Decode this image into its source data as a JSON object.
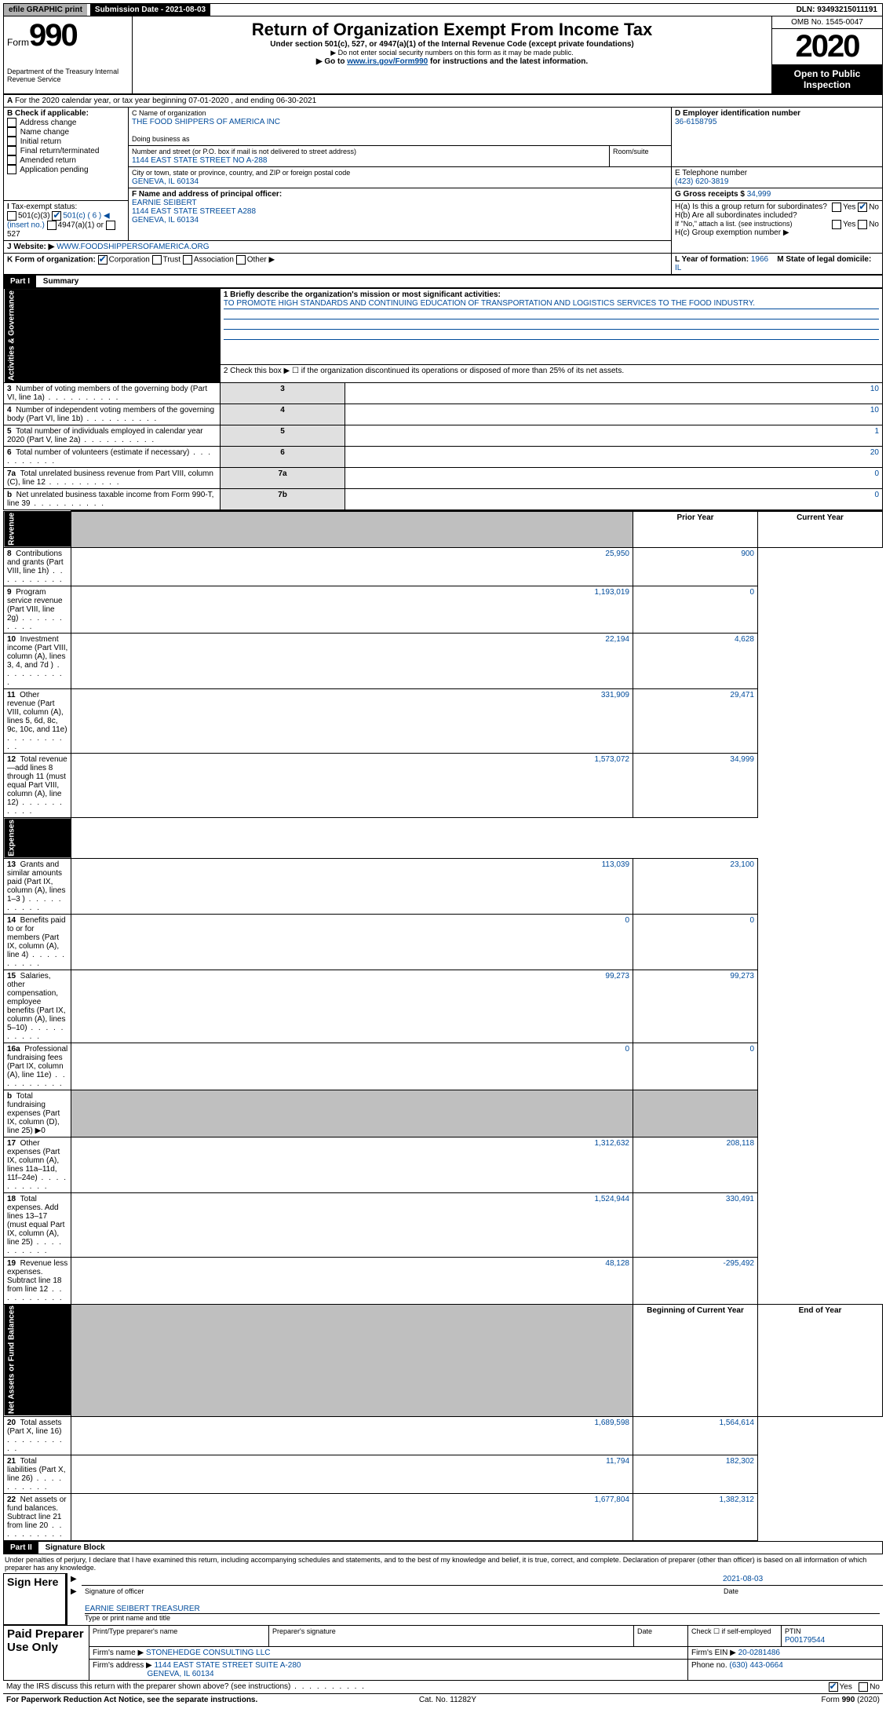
{
  "topbar": {
    "efile": "efile GRAPHIC print",
    "submission": "Submission Date - 2021-08-03",
    "dln": "DLN: 93493215011191"
  },
  "header": {
    "form_prefix": "Form",
    "form_num": "990",
    "dept": "Department of the Treasury Internal Revenue Service",
    "title": "Return of Organization Exempt From Income Tax",
    "subtitle1": "Under section 501(c), 527, or 4947(a)(1) of the Internal Revenue Code (except private foundations)",
    "subtitle2": "▶ Do not enter social security numbers on this form as it may be made public.",
    "subtitle3_pre": "▶ Go to ",
    "subtitle3_link": "www.irs.gov/Form990",
    "subtitle3_post": " for instructions and the latest information.",
    "omb": "OMB No. 1545-0047",
    "year": "2020",
    "open": "Open to Public Inspection"
  },
  "sectionA": {
    "tax_year": "For the 2020 calendar year, or tax year beginning 07-01-2020     , and ending 06-30-2021",
    "b_label": "B Check if applicable:",
    "b_opts": [
      "Address change",
      "Name change",
      "Initial return",
      "Final return/terminated",
      "Amended return",
      "Application pending"
    ],
    "c_label": "C Name of organization",
    "c_name": "THE FOOD SHIPPERS OF AMERICA INC",
    "dba": "Doing business as",
    "addr_label": "Number and street (or P.O. box if mail is not delivered to street address)",
    "addr": "1144 EAST STATE STREET NO A-288",
    "room": "Room/suite",
    "city_label": "City or town, state or province, country, and ZIP or foreign postal code",
    "city": "GENEVA, IL  60134",
    "d_label": "D Employer identification number",
    "d_val": "36-6158795",
    "e_label": "E Telephone number",
    "e_val": "(423) 620-3819",
    "g_label": "G Gross receipts $ ",
    "g_val": "34,999",
    "f_label": "F  Name and address of principal officer:",
    "f_name": "EARNIE SEIBERT",
    "f_addr1": "1144 EAST STATE STREEET A288",
    "f_addr2": "GENEVA, IL  60134",
    "h_a": "H(a)  Is this a group return for subordinates?",
    "h_b": "H(b)  Are all subordinates included?",
    "h_b_note": "If \"No,\" attach a list. (see instructions)",
    "h_c": "H(c)  Group exemption number ▶",
    "i_label": "Tax-exempt status:",
    "i_501c3": "501(c)(3)",
    "i_501c": "501(c) ( 6 ) ◀ (insert no.)",
    "i_4947": "4947(a)(1) or",
    "i_527": "527",
    "j_label": "Website: ▶",
    "j_val": "WWW.FOODSHIPPERSOFAMERICA.ORG",
    "k_label": "K Form of organization:",
    "k_opts": [
      "Corporation",
      "Trust",
      "Association",
      "Other ▶"
    ],
    "l_label": "L Year of formation: ",
    "l_val": "1966",
    "m_label": "M State of legal domicile: ",
    "m_val": "IL"
  },
  "part1": {
    "label": "Part I",
    "title": "Summary",
    "line1": "1  Briefly describe the organization's mission or most significant activities:",
    "mission": "TO PROMOTE HIGH STANDARDS AND CONTINUING EDUCATION OF TRANSPORTATION AND LOGISTICS SERVICES TO THE FOOD INDUSTRY.",
    "line2": "2   Check this box ▶ ☐  if the organization discontinued its operations or disposed of more than 25% of its net assets.",
    "rows_gov": [
      {
        "n": "3",
        "t": "Number of voting members of the governing body (Part VI, line 1a)",
        "lbl": "3",
        "v": "10"
      },
      {
        "n": "4",
        "t": "Number of independent voting members of the governing body (Part VI, line 1b)",
        "lbl": "4",
        "v": "10"
      },
      {
        "n": "5",
        "t": "Total number of individuals employed in calendar year 2020 (Part V, line 2a)",
        "lbl": "5",
        "v": "1"
      },
      {
        "n": "6",
        "t": "Total number of volunteers (estimate if necessary)",
        "lbl": "6",
        "v": "20"
      },
      {
        "n": "7a",
        "t": "Total unrelated business revenue from Part VIII, column (C), line 12",
        "lbl": "7a",
        "v": "0"
      },
      {
        "n": "b",
        "t": "Net unrelated business taxable income from Form 990-T, line 39",
        "lbl": "7b",
        "v": "0"
      }
    ],
    "col_prior": "Prior Year",
    "col_current": "Current Year",
    "rows_rev": [
      {
        "n": "8",
        "t": "Contributions and grants (Part VIII, line 1h)",
        "p": "25,950",
        "c": "900"
      },
      {
        "n": "9",
        "t": "Program service revenue (Part VIII, line 2g)",
        "p": "1,193,019",
        "c": "0"
      },
      {
        "n": "10",
        "t": "Investment income (Part VIII, column (A), lines 3, 4, and 7d )",
        "p": "22,194",
        "c": "4,628"
      },
      {
        "n": "11",
        "t": "Other revenue (Part VIII, column (A), lines 5, 6d, 8c, 9c, 10c, and 11e)",
        "p": "331,909",
        "c": "29,471"
      },
      {
        "n": "12",
        "t": "Total revenue—add lines 8 through 11 (must equal Part VIII, column (A), line 12)",
        "p": "1,573,072",
        "c": "34,999"
      }
    ],
    "rows_exp": [
      {
        "n": "13",
        "t": "Grants and similar amounts paid (Part IX, column (A), lines 1–3 )",
        "p": "113,039",
        "c": "23,100"
      },
      {
        "n": "14",
        "t": "Benefits paid to or for members (Part IX, column (A), line 4)",
        "p": "0",
        "c": "0"
      },
      {
        "n": "15",
        "t": "Salaries, other compensation, employee benefits (Part IX, column (A), lines 5–10)",
        "p": "99,273",
        "c": "99,273"
      },
      {
        "n": "16a",
        "t": "Professional fundraising fees (Part IX, column (A), line 11e)",
        "p": "0",
        "c": "0"
      },
      {
        "n": "b",
        "t": "Total fundraising expenses (Part IX, column (D), line 25) ▶0",
        "p": "",
        "c": ""
      },
      {
        "n": "17",
        "t": "Other expenses (Part IX, column (A), lines 11a–11d, 11f–24e)",
        "p": "1,312,632",
        "c": "208,118"
      },
      {
        "n": "18",
        "t": "Total expenses. Add lines 13–17 (must equal Part IX, column (A), line 25)",
        "p": "1,524,944",
        "c": "330,491"
      },
      {
        "n": "19",
        "t": "Revenue less expenses. Subtract line 18 from line 12",
        "p": "48,128",
        "c": "-295,492"
      }
    ],
    "col_beg": "Beginning of Current Year",
    "col_end": "End of Year",
    "rows_net": [
      {
        "n": "20",
        "t": "Total assets (Part X, line 16)",
        "p": "1,689,598",
        "c": "1,564,614"
      },
      {
        "n": "21",
        "t": "Total liabilities (Part X, line 26)",
        "p": "11,794",
        "c": "182,302"
      },
      {
        "n": "22",
        "t": "Net assets or fund balances. Subtract line 21 from line 20",
        "p": "1,677,804",
        "c": "1,382,312"
      }
    ],
    "vtabs": {
      "gov": "Activities & Governance",
      "rev": "Revenue",
      "exp": "Expenses",
      "net": "Net Assets or Fund Balances"
    }
  },
  "part2": {
    "label": "Part II",
    "title": "Signature Block",
    "perjury": "Under penalties of perjury, I declare that I have examined this return, including accompanying schedules and statements, and to the best of my knowledge and belief, it is true, correct, and complete. Declaration of preparer (other than officer) is based on all information of which preparer has any knowledge.",
    "sign_here": "Sign Here",
    "sig_officer": "Signature of officer",
    "sig_date_val": "2021-08-03",
    "sig_date": "Date",
    "sig_name": "EARNIE SEIBERT TREASURER",
    "sig_name_lbl": "Type or print name and title",
    "paid": "Paid Preparer Use Only",
    "prep_name_lbl": "Print/Type preparer's name",
    "prep_sig_lbl": "Preparer's signature",
    "prep_date_lbl": "Date",
    "self_emp": "Check ☐ if self-employed",
    "ptin_lbl": "PTIN",
    "ptin": "P00179544",
    "firm_name_lbl": "Firm's name     ▶",
    "firm_name": "STONEHEDGE CONSULTING LLC",
    "firm_ein_lbl": "Firm's EIN ▶ ",
    "firm_ein": "20-0281486",
    "firm_addr_lbl": "Firm's address ▶",
    "firm_addr": "1144 EAST STATE STREET SUITE A-280",
    "firm_city": "GENEVA, IL  60134",
    "phone_lbl": "Phone no. ",
    "phone": "(630) 443-0664",
    "discuss": "May the IRS discuss this return with the preparer shown above? (see instructions)",
    "paperwork": "For Paperwork Reduction Act Notice, see the separate instructions.",
    "cat": "Cat. No. 11282Y",
    "form_foot": "Form 990 (2020)"
  }
}
